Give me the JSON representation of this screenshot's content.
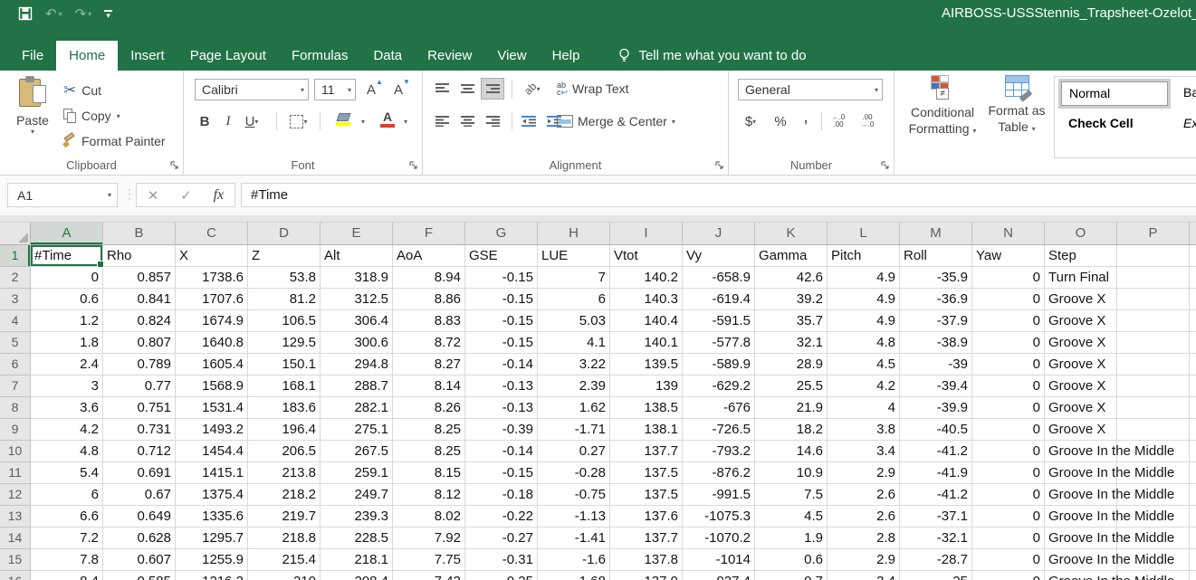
{
  "titlebar": {
    "title": "AIRBOSS-USSStennis_Trapsheet-Ozelot_FA",
    "icons": {
      "undo": "↶",
      "redo": "↷"
    }
  },
  "tabrow": {
    "tabs": [
      "File",
      "Home",
      "Insert",
      "Page Layout",
      "Formulas",
      "Data",
      "Review",
      "View",
      "Help"
    ],
    "active_tab": "Home",
    "tell_me": "Tell me what you want to do"
  },
  "ribbon": {
    "clipboard": {
      "label": "Clipboard",
      "paste": "Paste",
      "cut": "Cut",
      "copy": "Copy",
      "format_painter": "Format Painter"
    },
    "font": {
      "label": "Font",
      "family": "Calibri",
      "size": "11",
      "bold": "B",
      "italic": "I",
      "underline": "U"
    },
    "alignment": {
      "label": "Alignment",
      "wrap_text": "Wrap Text",
      "merge_center": "Merge & Center"
    },
    "number": {
      "label": "Number",
      "format": "General",
      "currency": "$",
      "percent": "%",
      "comma": ","
    },
    "styles": {
      "conditional_line1": "Conditional",
      "conditional_line2": "Formatting",
      "format_table_line1": "Format as",
      "format_table_line2": "Table",
      "cell_styles": [
        "Normal",
        "Ba",
        "Check Cell",
        "Ex"
      ]
    }
  },
  "formula_bar": {
    "name_box": "A1",
    "formula": "#Time"
  },
  "colors": {
    "accent_green": "#217346",
    "bad_bg": "#ffc7ce",
    "bad_text": "#9c0006",
    "check_bg": "#a5a5a5",
    "fill_yellow": "#ffff00",
    "font_red": "#e03c31"
  },
  "grid": {
    "selected": {
      "column": "A",
      "row": 1
    },
    "columns": [
      "A",
      "B",
      "C",
      "D",
      "E",
      "F",
      "G",
      "H",
      "I",
      "J",
      "K",
      "L",
      "M",
      "N",
      "O",
      "P"
    ],
    "rows": [
      {
        "n": 1,
        "cells": [
          "#Time",
          "Rho",
          "X",
          "Z",
          "Alt",
          "AoA",
          "GSE",
          "LUE",
          "Vtot",
          "Vy",
          "Gamma",
          "Pitch",
          "Roll",
          "Yaw",
          "Step",
          ""
        ]
      },
      {
        "n": 2,
        "cells": [
          "0",
          "0.857",
          "1738.6",
          "53.8",
          "318.9",
          "8.94",
          "-0.15",
          "7",
          "140.2",
          "-658.9",
          "42.6",
          "4.9",
          "-35.9",
          "0",
          "Turn Final",
          ""
        ]
      },
      {
        "n": 3,
        "cells": [
          "0.6",
          "0.841",
          "1707.6",
          "81.2",
          "312.5",
          "8.86",
          "-0.15",
          "6",
          "140.3",
          "-619.4",
          "39.2",
          "4.9",
          "-36.9",
          "0",
          "Groove X",
          ""
        ]
      },
      {
        "n": 4,
        "cells": [
          "1.2",
          "0.824",
          "1674.9",
          "106.5",
          "306.4",
          "8.83",
          "-0.15",
          "5.03",
          "140.4",
          "-591.5",
          "35.7",
          "4.9",
          "-37.9",
          "0",
          "Groove X",
          ""
        ]
      },
      {
        "n": 5,
        "cells": [
          "1.8",
          "0.807",
          "1640.8",
          "129.5",
          "300.6",
          "8.72",
          "-0.15",
          "4.1",
          "140.1",
          "-577.8",
          "32.1",
          "4.8",
          "-38.9",
          "0",
          "Groove X",
          ""
        ]
      },
      {
        "n": 6,
        "cells": [
          "2.4",
          "0.789",
          "1605.4",
          "150.1",
          "294.8",
          "8.27",
          "-0.14",
          "3.22",
          "139.5",
          "-589.9",
          "28.9",
          "4.5",
          "-39",
          "0",
          "Groove X",
          ""
        ]
      },
      {
        "n": 7,
        "cells": [
          "3",
          "0.77",
          "1568.9",
          "168.1",
          "288.7",
          "8.14",
          "-0.13",
          "2.39",
          "139",
          "-629.2",
          "25.5",
          "4.2",
          "-39.4",
          "0",
          "Groove X",
          ""
        ]
      },
      {
        "n": 8,
        "cells": [
          "3.6",
          "0.751",
          "1531.4",
          "183.6",
          "282.1",
          "8.26",
          "-0.13",
          "1.62",
          "138.5",
          "-676",
          "21.9",
          "4",
          "-39.9",
          "0",
          "Groove X",
          ""
        ]
      },
      {
        "n": 9,
        "cells": [
          "4.2",
          "0.731",
          "1493.2",
          "196.4",
          "275.1",
          "8.25",
          "-0.39",
          "-1.71",
          "138.1",
          "-726.5",
          "18.2",
          "3.8",
          "-40.5",
          "0",
          "Groove X",
          ""
        ]
      },
      {
        "n": 10,
        "cells": [
          "4.8",
          "0.712",
          "1454.4",
          "206.5",
          "267.5",
          "8.25",
          "-0.14",
          "0.27",
          "137.7",
          "-793.2",
          "14.6",
          "3.4",
          "-41.2",
          "0",
          "Groove In the Middle",
          ""
        ]
      },
      {
        "n": 11,
        "cells": [
          "5.4",
          "0.691",
          "1415.1",
          "213.8",
          "259.1",
          "8.15",
          "-0.15",
          "-0.28",
          "137.5",
          "-876.2",
          "10.9",
          "2.9",
          "-41.9",
          "0",
          "Groove In the Middle",
          ""
        ]
      },
      {
        "n": 12,
        "cells": [
          "6",
          "0.67",
          "1375.4",
          "218.2",
          "249.7",
          "8.12",
          "-0.18",
          "-0.75",
          "137.5",
          "-991.5",
          "7.5",
          "2.6",
          "-41.2",
          "0",
          "Groove In the Middle",
          ""
        ]
      },
      {
        "n": 13,
        "cells": [
          "6.6",
          "0.649",
          "1335.6",
          "219.7",
          "239.3",
          "8.02",
          "-0.22",
          "-1.13",
          "137.6",
          "-1075.3",
          "4.5",
          "2.6",
          "-37.1",
          "0",
          "Groove In the Middle",
          ""
        ]
      },
      {
        "n": 14,
        "cells": [
          "7.2",
          "0.628",
          "1295.7",
          "218.8",
          "228.5",
          "7.92",
          "-0.27",
          "-1.41",
          "137.7",
          "-1070.2",
          "1.9",
          "2.8",
          "-32.1",
          "0",
          "Groove In the Middle",
          ""
        ]
      },
      {
        "n": 15,
        "cells": [
          "7.8",
          "0.607",
          "1255.9",
          "215.4",
          "218.1",
          "7.75",
          "-0.31",
          "-1.6",
          "137.8",
          "-1014",
          "0.6",
          "2.9",
          "-28.7",
          "0",
          "Groove In the Middle",
          ""
        ]
      },
      {
        "n": 16,
        "cells": [
          "8.4",
          "0.585",
          "1216.2",
          "210",
          "208.4",
          "7.43",
          "-0.25",
          "-1.68",
          "137.9",
          "-937.4",
          "0.7",
          "3.4",
          "-25",
          "0",
          "Groove In the Middle",
          ""
        ]
      }
    ]
  }
}
